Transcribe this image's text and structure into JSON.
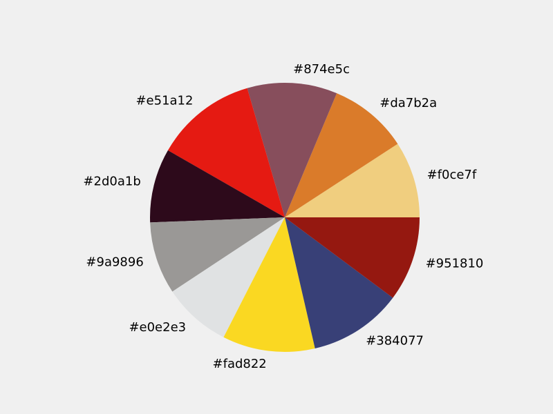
{
  "chart_data": {
    "type": "pie",
    "title": "",
    "start_angle_deg": 0,
    "direction": "counterclockwise",
    "categories": [
      "#f0ce7f",
      "#da7b2a",
      "#874e5c",
      "#e51a12",
      "#2d0a1b",
      "#9a9896",
      "#e0e2e3",
      "#fad822",
      "#384077",
      "#951810"
    ],
    "values": [
      9.2,
      9.5,
      10.8,
      12.2,
      8.9,
      8.7,
      8.2,
      11.1,
      11.2,
      10.2
    ],
    "colors": [
      "#f0ce7f",
      "#da7b2a",
      "#874e5c",
      "#e51a12",
      "#2d0a1b",
      "#9a9896",
      "#e0e2e3",
      "#fad822",
      "#384077",
      "#951810"
    ]
  }
}
